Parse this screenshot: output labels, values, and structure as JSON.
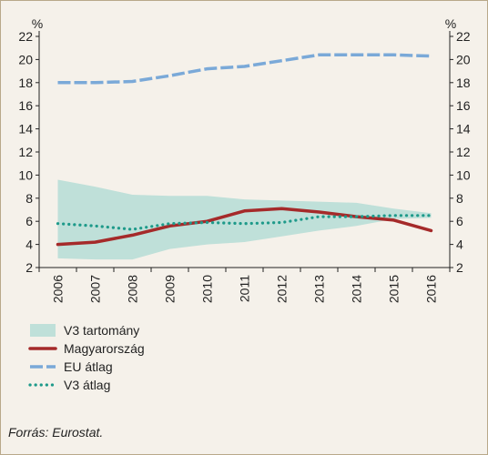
{
  "chart_data": {
    "type": "line",
    "unit_left": "%",
    "unit_right": "%",
    "categories": [
      "2006",
      "2007",
      "2008",
      "2009",
      "2010",
      "2011",
      "2012",
      "2013",
      "2014",
      "2015",
      "2016"
    ],
    "yticks": [
      2,
      4,
      6,
      8,
      10,
      12,
      14,
      16,
      18,
      20,
      22
    ],
    "ylim": [
      2,
      22
    ],
    "band": {
      "name": "V3 tartomány",
      "color": "#bfe0d9",
      "upper": [
        9.6,
        9.0,
        8.3,
        8.2,
        8.2,
        7.9,
        7.8,
        7.7,
        7.6,
        7.1,
        6.7
      ],
      "lower": [
        2.8,
        2.7,
        2.7,
        3.6,
        4.0,
        4.2,
        4.7,
        5.2,
        5.6,
        6.2,
        6.3
      ]
    },
    "series": [
      {
        "name": "Magyarország",
        "color": "#a52a2a",
        "style": "solid",
        "values": [
          4.0,
          4.2,
          4.8,
          5.6,
          6.0,
          6.9,
          7.1,
          6.8,
          6.4,
          6.1,
          5.2
        ]
      },
      {
        "name": "EU átlag",
        "color": "#7aa9d8",
        "style": "dashed",
        "values": [
          18.0,
          18.0,
          18.1,
          18.6,
          19.2,
          19.4,
          19.9,
          20.4,
          20.4,
          20.4,
          20.3
        ]
      },
      {
        "name": "V3 átlag",
        "color": "#1e9a8a",
        "style": "dotted",
        "values": [
          5.8,
          5.6,
          5.3,
          5.8,
          5.9,
          5.8,
          5.9,
          6.4,
          6.4,
          6.5,
          6.5
        ]
      }
    ],
    "grid": false,
    "legend_position": "bottom-left"
  },
  "source": "Forrás: Eurostat."
}
